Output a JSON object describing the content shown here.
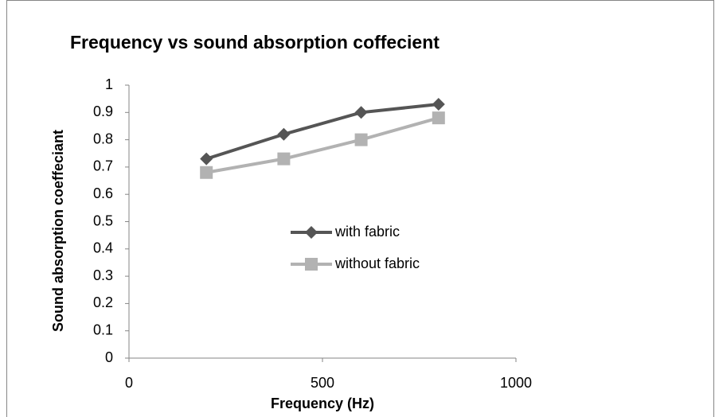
{
  "chart_data": {
    "type": "line",
    "title": "Frequency vs sound absorption coffecient",
    "x_label": "Frequency (Hz)",
    "y_label": "Sound absorption coeffeciant",
    "x": [
      200,
      400,
      600,
      800
    ],
    "series": [
      {
        "name": "with fabric",
        "color": "#555555",
        "marker": "diamond",
        "values": [
          0.73,
          0.82,
          0.9,
          0.93
        ]
      },
      {
        "name": "without fabric",
        "color": "#b2b2b2",
        "marker": "square",
        "values": [
          0.68,
          0.73,
          0.8,
          0.88
        ]
      }
    ],
    "xlim": [
      0,
      1000
    ],
    "xticks": [
      0,
      500,
      1000
    ],
    "ylim": [
      0,
      1
    ],
    "yticks": [
      0,
      0.1,
      0.2,
      0.3,
      0.4,
      0.5,
      0.6,
      0.7,
      0.8,
      0.9,
      1
    ],
    "grid": false,
    "legend": "center"
  }
}
